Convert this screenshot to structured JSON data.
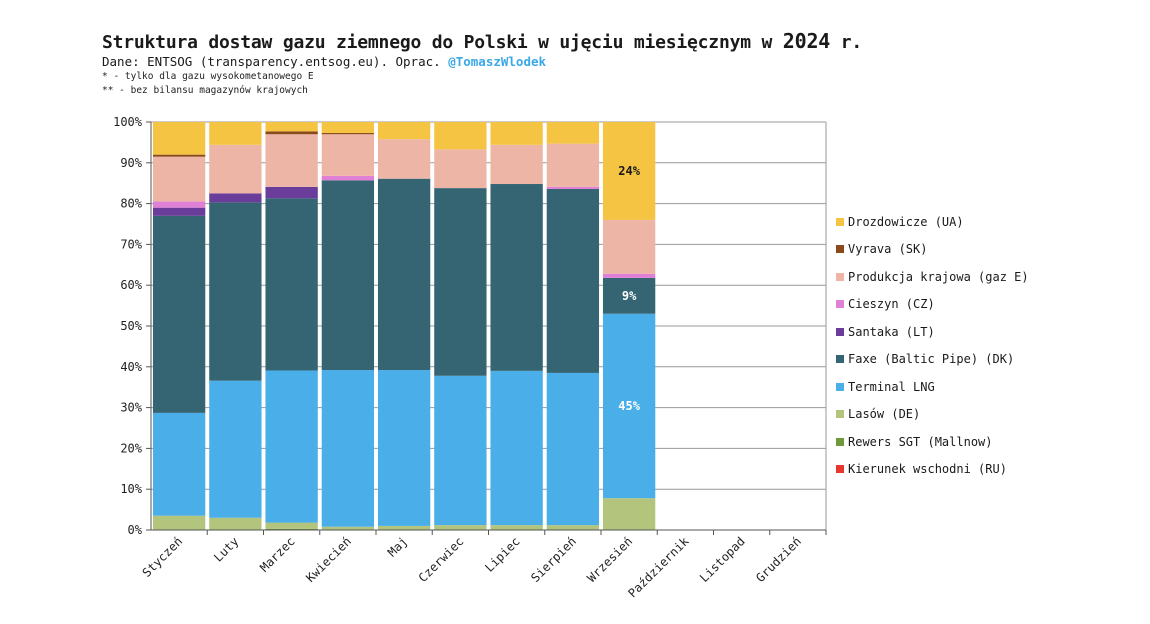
{
  "header": {
    "title_main": "Struktura dostaw gazu ziemnego do Polski w ujęciu miesięcznym w ",
    "title_year": "2024",
    "title_end": " r.",
    "source_prefix": "Dane: ENTSOG (transparency.entsog.eu). Oprac. ",
    "source_handle": "@TomaszWlodek",
    "note1": "* - tylko dla gazu wysokometanowego E",
    "note2": "** - bez bilansu magazynów krajowych"
  },
  "chart_data": {
    "type": "bar",
    "stacked": "percent",
    "title": "Struktura dostaw gazu ziemnego do Polski w ujęciu miesięcznym w 2024 r.",
    "categories": [
      "Styczeń",
      "Luty",
      "Marzec",
      "Kwiecień",
      "Maj",
      "Czerwiec",
      "Lipiec",
      "Sierpień",
      "Wrzesień",
      "Październik",
      "Listopad",
      "Grudzień"
    ],
    "y_ticks": [
      "0%",
      "10%",
      "20%",
      "30%",
      "40%",
      "50%",
      "60%",
      "70%",
      "80%",
      "90%",
      "100%"
    ],
    "ylim": [
      0,
      100
    ],
    "grid": true,
    "legend_position": "right",
    "series": [
      {
        "name": "Kierunek wschodni (RU)",
        "color": "#e8372c",
        "values": [
          0,
          0,
          0,
          0,
          0,
          0,
          0,
          0,
          0,
          null,
          null,
          null
        ]
      },
      {
        "name": "Rewers SGT (Mallnow)",
        "color": "#6f9a3c",
        "values": [
          0,
          0,
          0.3,
          0,
          0,
          0,
          0,
          0,
          0,
          null,
          null,
          null
        ]
      },
      {
        "name": "Lasów (DE)",
        "color": "#b3c57d",
        "values": [
          3.5,
          3.0,
          1.5,
          0.8,
          1.0,
          1.2,
          1.2,
          1.2,
          7.8,
          null,
          null,
          null
        ]
      },
      {
        "name": "Terminal LNG",
        "color": "#4aaee8",
        "values": [
          25.2,
          33.6,
          37.3,
          38.4,
          38.2,
          36.6,
          37.8,
          37.3,
          45.2,
          null,
          null,
          null
        ]
      },
      {
        "name": "Faxe (Baltic Pipe) (DK)",
        "color": "#356473",
        "values": [
          48.3,
          43.7,
          42.2,
          46.5,
          46.9,
          46.0,
          45.8,
          45.1,
          8.8,
          null,
          null,
          null
        ]
      },
      {
        "name": "Santaka (LT)",
        "color": "#6a3d9a",
        "values": [
          2.0,
          2.2,
          2.8,
          0,
          0,
          0,
          0,
          0,
          0,
          null,
          null,
          null
        ]
      },
      {
        "name": "Cieszyn (CZ)",
        "color": "#e07fd6",
        "values": [
          1.5,
          0,
          0,
          1.1,
          0,
          0,
          0,
          0.5,
          1.0,
          null,
          null,
          null
        ]
      },
      {
        "name": "Produkcja krajowa (gaz E)",
        "color": "#edb5a6",
        "values": [
          11.0,
          11.9,
          12.9,
          10.2,
          9.7,
          9.5,
          9.6,
          10.6,
          13.2,
          null,
          null,
          null
        ]
      },
      {
        "name": "Vyrava (SK)",
        "color": "#8b4a1c",
        "values": [
          0.5,
          0,
          0.7,
          0.3,
          0,
          0,
          0,
          0,
          0,
          null,
          null,
          null
        ]
      },
      {
        "name": "Drozdowicze (UA)",
        "color": "#f6c443",
        "values": [
          8.0,
          5.6,
          2.3,
          2.7,
          4.2,
          6.7,
          5.6,
          5.3,
          24.0,
          null,
          null,
          null
        ]
      }
    ],
    "data_labels": [
      {
        "category": "Wrzesień",
        "series": "Terminal LNG",
        "text": "45%"
      },
      {
        "category": "Wrzesień",
        "series": "Faxe (Baltic Pipe) (DK)",
        "text": "9%"
      },
      {
        "category": "Wrzesień",
        "series": "Drozdowicze (UA)",
        "text": "24%"
      }
    ]
  },
  "legend_order": [
    "Drozdowicze (UA)",
    "Vyrava (SK)",
    "Produkcja krajowa (gaz E)",
    "Cieszyn (CZ)",
    "Santaka (LT)",
    "Faxe (Baltic Pipe) (DK)",
    "Terminal LNG",
    "Lasów (DE)",
    "Rewers SGT (Mallnow)",
    "Kierunek wschodni (RU)"
  ]
}
